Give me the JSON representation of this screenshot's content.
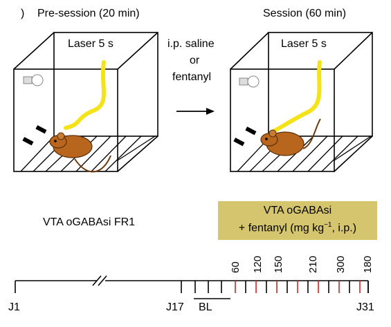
{
  "top": {
    "left_prefix": ")",
    "left_title": "Pre-session (20 min)",
    "right_title": "Session (60 min)",
    "left_laser": "Laser 5 s",
    "right_laser": "Laser 5 s",
    "middle_lines": [
      "i.p. saline",
      "or",
      "fentanyl"
    ]
  },
  "bottom": {
    "condition_label": "VTA oGABAsi FR1",
    "panel_line1": "VTA oGABAsi",
    "panel_line2": "+ fentanyl (mg kg",
    "panel_sup": "−1",
    "panel_line2_end": ", i.p.)",
    "doses": [
      "60",
      "120",
      "150",
      "210",
      "300",
      "180"
    ],
    "timeline": {
      "start": "J1",
      "j17": "J17",
      "bl": "BL",
      "end": "J31"
    }
  },
  "colors": {
    "laser_yellow": "#f5e31a",
    "mouse_brown": "#b8651d",
    "panel_gold": "#d6c56f",
    "dose_red": "#d62020"
  }
}
